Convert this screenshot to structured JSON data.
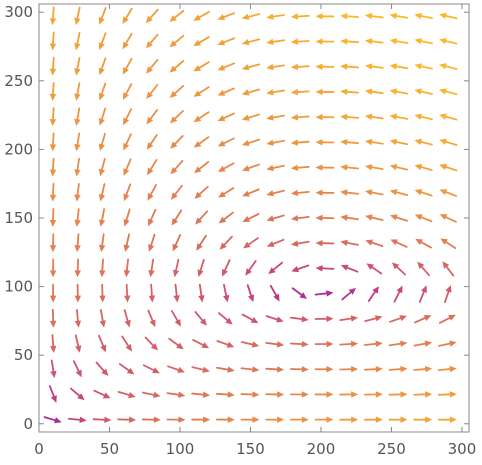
{
  "chart_data": {
    "type": "vector_field",
    "title": "",
    "xlabel": "",
    "ylabel": "",
    "xlim": [
      0,
      305
    ],
    "ylim": [
      -6,
      306
    ],
    "x_ticks": [
      0,
      50,
      100,
      150,
      200,
      250,
      300
    ],
    "y_ticks": [
      0,
      50,
      100,
      150,
      200,
      250,
      300
    ],
    "x_tick_labels": [
      "0",
      "50",
      "100",
      "150",
      "200",
      "250",
      "300"
    ],
    "y_tick_labels": [
      "0",
      "50",
      "100",
      "150",
      "200",
      "250",
      "300"
    ],
    "grid": false,
    "frame": true,
    "sample_x_range": [
      10,
      290
    ],
    "sample_y_range": [
      3,
      297
    ],
    "samples_per_axis": 17,
    "field": {
      "form": "Lotka-Volterra",
      "dx_dt": "x*(1 - y/100)",
      "dy_dt": "y*(x/200 - 1)",
      "equilibrium": [
        200,
        100
      ]
    },
    "color_scale": {
      "low": "#3d0ed1",
      "mid": "#c03a83",
      "high": "#fcb72a"
    }
  }
}
